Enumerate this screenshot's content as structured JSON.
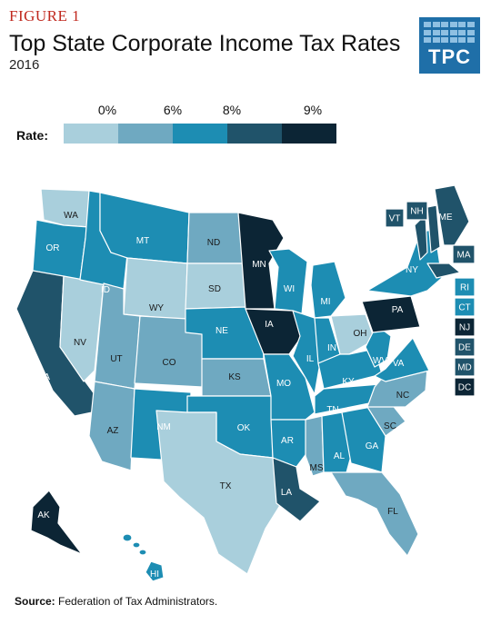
{
  "figure_label": "FIGURE 1",
  "title": "Top State Corporate Income Tax Rates",
  "subtitle": "2016",
  "logo_text": "TPC",
  "legend": {
    "title": "Rate:",
    "ticks": [
      "0%",
      "6%",
      "8%",
      "9%"
    ],
    "colors": [
      "#a9cfdc",
      "#6fa9c1",
      "#1d8db3",
      "#20536a",
      "#0c2535"
    ]
  },
  "source": {
    "label": "Source:",
    "text": "Federation of Tax Administrators."
  },
  "map_data": {
    "legend_placement": "top-left",
    "states": [
      {
        "abbr": "WA",
        "bin": 0
      },
      {
        "abbr": "OR",
        "bin": 2
      },
      {
        "abbr": "CA",
        "bin": 3
      },
      {
        "abbr": "NV",
        "bin": 0
      },
      {
        "abbr": "ID",
        "bin": 2
      },
      {
        "abbr": "MT",
        "bin": 2
      },
      {
        "abbr": "WY",
        "bin": 0
      },
      {
        "abbr": "UT",
        "bin": 1
      },
      {
        "abbr": "CO",
        "bin": 1
      },
      {
        "abbr": "AZ",
        "bin": 1
      },
      {
        "abbr": "NM",
        "bin": 2
      },
      {
        "abbr": "ND",
        "bin": 1
      },
      {
        "abbr": "SD",
        "bin": 0
      },
      {
        "abbr": "NE",
        "bin": 2
      },
      {
        "abbr": "KS",
        "bin": 1
      },
      {
        "abbr": "OK",
        "bin": 2
      },
      {
        "abbr": "TX",
        "bin": 0
      },
      {
        "abbr": "MN",
        "bin": 4
      },
      {
        "abbr": "IA",
        "bin": 4
      },
      {
        "abbr": "MO",
        "bin": 2
      },
      {
        "abbr": "AR",
        "bin": 2
      },
      {
        "abbr": "LA",
        "bin": 3
      },
      {
        "abbr": "WI",
        "bin": 2
      },
      {
        "abbr": "IL",
        "bin": 2
      },
      {
        "abbr": "MI",
        "bin": 2
      },
      {
        "abbr": "IN",
        "bin": 2
      },
      {
        "abbr": "OH",
        "bin": 0
      },
      {
        "abbr": "KY",
        "bin": 2
      },
      {
        "abbr": "TN",
        "bin": 2
      },
      {
        "abbr": "MS",
        "bin": 1
      },
      {
        "abbr": "AL",
        "bin": 2
      },
      {
        "abbr": "GA",
        "bin": 2
      },
      {
        "abbr": "FL",
        "bin": 1
      },
      {
        "abbr": "SC",
        "bin": 1
      },
      {
        "abbr": "NC",
        "bin": 1
      },
      {
        "abbr": "VA",
        "bin": 2
      },
      {
        "abbr": "WV",
        "bin": 2
      },
      {
        "abbr": "PA",
        "bin": 4
      },
      {
        "abbr": "NY",
        "bin": 2
      },
      {
        "abbr": "ME",
        "bin": 3
      },
      {
        "abbr": "AK",
        "bin": 4
      },
      {
        "abbr": "HI",
        "bin": 2
      },
      {
        "abbr": "VT",
        "bin": 3
      },
      {
        "abbr": "NH",
        "bin": 3
      },
      {
        "abbr": "MA",
        "bin": 3
      },
      {
        "abbr": "RI",
        "bin": 2
      },
      {
        "abbr": "CT",
        "bin": 2
      },
      {
        "abbr": "NJ",
        "bin": 4
      },
      {
        "abbr": "DE",
        "bin": 3
      },
      {
        "abbr": "MD",
        "bin": 3
      },
      {
        "abbr": "DC",
        "bin": 4
      }
    ]
  }
}
